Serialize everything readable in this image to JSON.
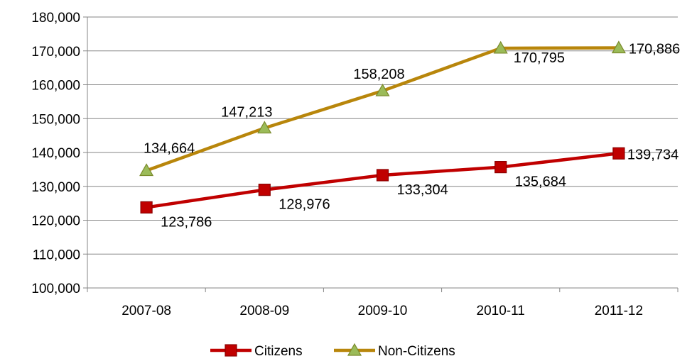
{
  "chart_data": {
    "type": "line",
    "title": "",
    "xlabel": "",
    "ylabel": "",
    "categories": [
      "2007-08",
      "2008-09",
      "2009-10",
      "2010-11",
      "2011-12"
    ],
    "ylim": [
      100000,
      180000
    ],
    "y_ticks": [
      "100,000",
      "110,000",
      "120,000",
      "130,000",
      "140,000",
      "150,000",
      "160,000",
      "170,000",
      "180,000"
    ],
    "y_tick_values": [
      100000,
      110000,
      120000,
      130000,
      140000,
      150000,
      160000,
      170000,
      180000
    ],
    "grid": true,
    "legend_position": "bottom",
    "series": [
      {
        "name": "Citizens",
        "color": "#c00000",
        "marker": "square",
        "values": [
          123786,
          128976,
          133304,
          135684,
          139734
        ],
        "labels": [
          "123,786",
          "128,976",
          "133,304",
          "135,684",
          "139,734"
        ]
      },
      {
        "name": "Non-Citizens",
        "color": "#b8860b",
        "marker_fill": "#9bbb59",
        "marker": "triangle",
        "values": [
          134664,
          147213,
          158208,
          170795,
          170886
        ],
        "labels": [
          "134,664",
          "147,213",
          "158,208",
          "170,795",
          "170,886"
        ]
      }
    ]
  }
}
